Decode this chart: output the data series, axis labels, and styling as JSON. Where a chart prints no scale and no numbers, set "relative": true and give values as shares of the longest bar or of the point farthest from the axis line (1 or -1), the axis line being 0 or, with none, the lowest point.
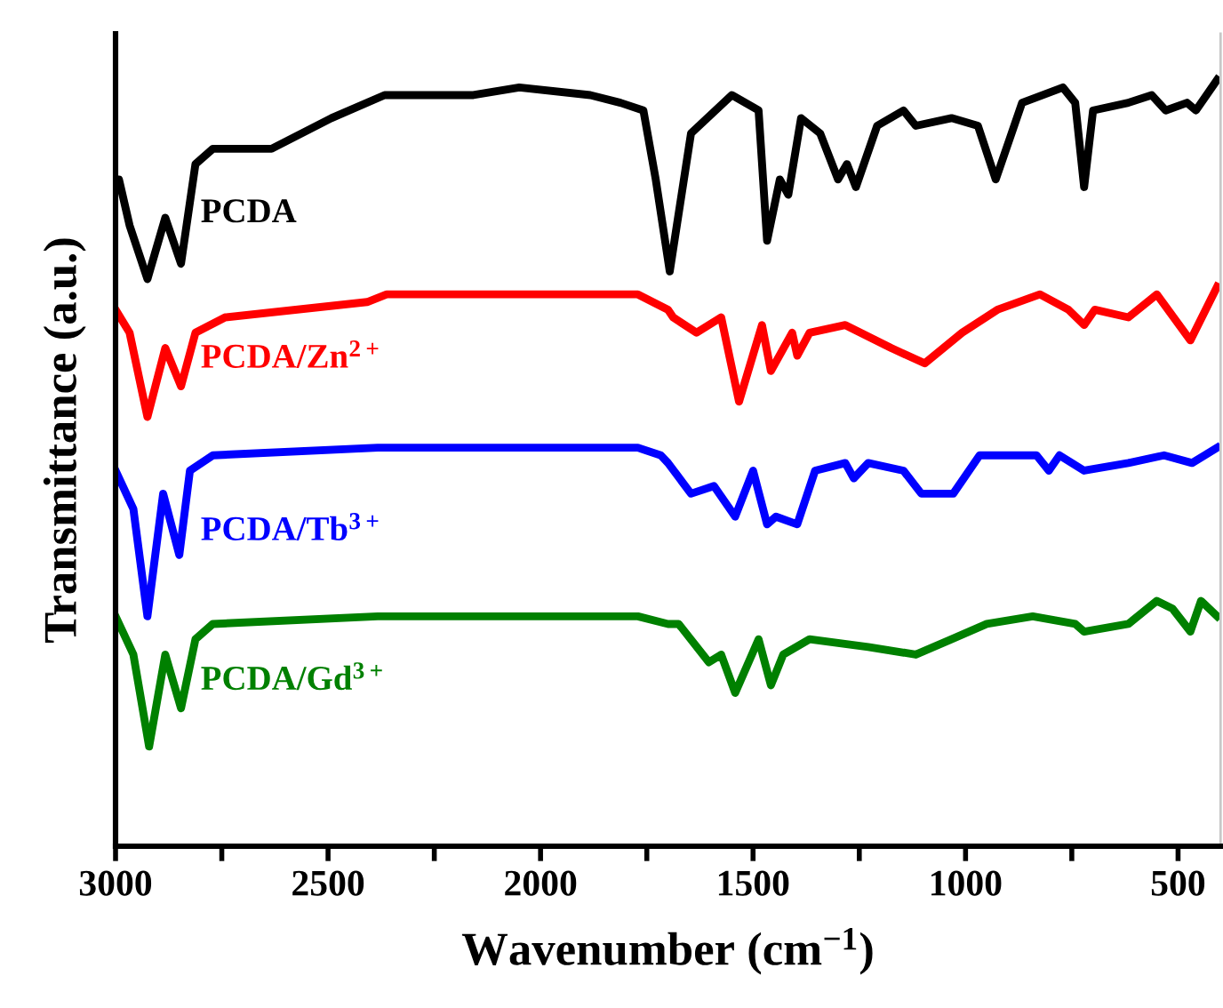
{
  "chart_data": {
    "type": "line",
    "relative": true,
    "xlabel": "Wavenumber (cm$^{−1}$)",
    "ylabel": "Transmittance (a.u.)",
    "xlim": [
      3000,
      400
    ],
    "xticks": [
      3000,
      {
        "value": 2750,
        "label": null
      },
      2500,
      {
        "value": 2250,
        "label": null
      },
      2000,
      {
        "value": 1750,
        "label": null
      },
      1500,
      {
        "value": 1250,
        "label": null
      },
      1000,
      {
        "value": 750,
        "label": null
      },
      500
    ],
    "tick_labels": "x",
    "grid": false,
    "legend": false,
    "marker": "none",
    "line_style": "solid",
    "series": [
      {
        "name": "PCDA",
        "color": "#000000",
        "x": [
          3000,
          2992,
          2967,
          2925,
          2883,
          2846,
          2812,
          2771,
          2633,
          2492,
          2367,
          2158,
          2050,
          1883,
          1812,
          1758,
          1729,
          1696,
          1646,
          1550,
          1487,
          1467,
          1437,
          1417,
          1387,
          1342,
          1300,
          1279,
          1258,
          1208,
          1146,
          1117,
          1033,
          971,
          929,
          867,
          771,
          742,
          721,
          700,
          617,
          562,
          529,
          479,
          458,
          408
        ],
        "values": [
          0.87,
          0.87,
          0.81,
          0.74,
          0.82,
          0.76,
          0.89,
          0.91,
          0.91,
          0.95,
          0.98,
          0.98,
          0.99,
          0.98,
          0.97,
          0.96,
          0.87,
          0.75,
          0.93,
          0.98,
          0.96,
          0.79,
          0.87,
          0.85,
          0.95,
          0.93,
          0.87,
          0.89,
          0.86,
          0.94,
          0.96,
          0.94,
          0.95,
          0.94,
          0.87,
          0.97,
          0.99,
          0.97,
          0.86,
          0.96,
          0.97,
          0.98,
          0.96,
          0.97,
          0.96,
          1.0
        ]
      },
      {
        "name": "PCDA/Zn$^{2+}$",
        "color": "#ff0000",
        "x": [
          3000,
          2967,
          2925,
          2883,
          2846,
          2812,
          2742,
          2408,
          2362,
          2325,
          2187,
          1771,
          1700,
          1688,
          1633,
          1575,
          1533,
          1479,
          1458,
          1408,
          1396,
          1367,
          1283,
          1175,
          1096,
          1008,
          925,
          825,
          758,
          721,
          696,
          617,
          550,
          471,
          408
        ],
        "values": [
          0.7,
          0.67,
          0.56,
          0.65,
          0.6,
          0.67,
          0.69,
          0.71,
          0.72,
          0.72,
          0.72,
          0.72,
          0.7,
          0.69,
          0.67,
          0.69,
          0.58,
          0.68,
          0.62,
          0.67,
          0.64,
          0.67,
          0.68,
          0.65,
          0.63,
          0.67,
          0.7,
          0.72,
          0.7,
          0.68,
          0.7,
          0.69,
          0.72,
          0.66,
          0.73
        ]
      },
      {
        "name": "PCDA/Tb$^{3+}$",
        "color": "#0000ff",
        "x": [
          3000,
          2958,
          2925,
          2888,
          2850,
          2825,
          2771,
          2383,
          2358,
          2325,
          1771,
          1717,
          1700,
          1646,
          1592,
          1542,
          1500,
          1467,
          1446,
          1396,
          1354,
          1283,
          1263,
          1229,
          1146,
          1104,
          1029,
          967,
          833,
          804,
          779,
          721,
          617,
          533,
          467,
          408
        ],
        "values": [
          0.49,
          0.44,
          0.3,
          0.46,
          0.38,
          0.49,
          0.51,
          0.52,
          0.52,
          0.52,
          0.52,
          0.51,
          0.5,
          0.46,
          0.47,
          0.43,
          0.49,
          0.42,
          0.43,
          0.42,
          0.49,
          0.5,
          0.48,
          0.5,
          0.49,
          0.46,
          0.46,
          0.51,
          0.51,
          0.49,
          0.51,
          0.49,
          0.5,
          0.51,
          0.5,
          0.52
        ]
      },
      {
        "name": "PCDA/Gd$^{3+}$",
        "color": "#008000",
        "x": [
          3000,
          2958,
          2921,
          2883,
          2846,
          2812,
          2771,
          2383,
          2358,
          2325,
          1771,
          1700,
          1675,
          1604,
          1575,
          1542,
          1487,
          1458,
          1429,
          1367,
          1229,
          1117,
          1033,
          950,
          842,
          742,
          721,
          617,
          550,
          513,
          471,
          446,
          408
        ],
        "values": [
          0.3,
          0.25,
          0.13,
          0.25,
          0.18,
          0.27,
          0.29,
          0.3,
          0.3,
          0.3,
          0.3,
          0.29,
          0.29,
          0.24,
          0.25,
          0.2,
          0.27,
          0.21,
          0.25,
          0.27,
          0.26,
          0.25,
          0.27,
          0.29,
          0.3,
          0.29,
          0.28,
          0.29,
          0.32,
          0.31,
          0.28,
          0.32,
          0.3
        ]
      }
    ]
  }
}
